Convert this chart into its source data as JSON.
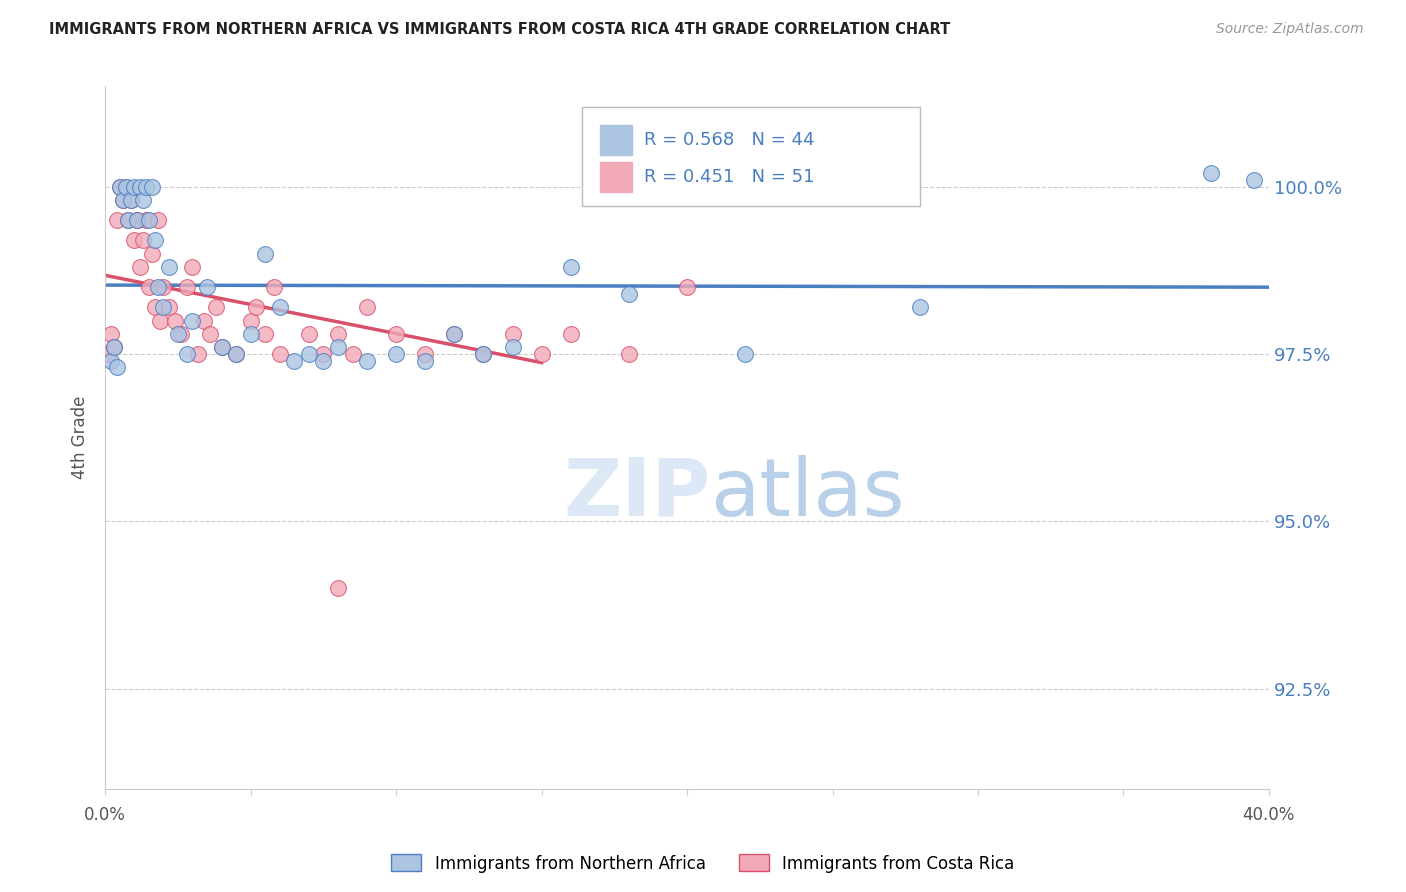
{
  "title": "IMMIGRANTS FROM NORTHERN AFRICA VS IMMIGRANTS FROM COSTA RICA 4TH GRADE CORRELATION CHART",
  "source": "Source: ZipAtlas.com",
  "ylabel": "4th Grade",
  "ytick_values": [
    100.0,
    97.5,
    95.0,
    92.5
  ],
  "xlim": [
    0.0,
    40.0
  ],
  "ylim": [
    91.0,
    101.5
  ],
  "blue_R": 0.568,
  "blue_N": 44,
  "pink_R": 0.451,
  "pink_N": 51,
  "legend_label_blue": "Immigrants from Northern Africa",
  "legend_label_pink": "Immigrants from Costa Rica",
  "blue_color": "#aac4e2",
  "pink_color": "#f2aab8",
  "trendline_blue": "#4a7fc1",
  "trendline_pink": "#d9506a",
  "title_color": "#222222",
  "axis_label_color": "#555555",
  "right_tick_color": "#4a7fc1",
  "watermark_zip_color": "#dce8f5",
  "watermark_atlas_color": "#b8d0e8",
  "blue_scatter_x": [
    0.2,
    0.3,
    0.4,
    0.5,
    0.6,
    0.7,
    0.8,
    0.9,
    1.0,
    1.1,
    1.2,
    1.3,
    1.4,
    1.5,
    1.6,
    1.7,
    1.8,
    2.0,
    2.2,
    2.5,
    2.8,
    3.0,
    3.5,
    4.0,
    4.5,
    5.0,
    5.5,
    6.0,
    6.5,
    7.0,
    7.5,
    8.0,
    9.0,
    10.0,
    11.0,
    12.0,
    13.0,
    14.0,
    16.0,
    18.0,
    22.0,
    28.0,
    38.0,
    39.5
  ],
  "blue_scatter_y": [
    97.4,
    97.6,
    97.3,
    100.0,
    99.8,
    100.0,
    99.5,
    99.8,
    100.0,
    99.5,
    100.0,
    99.8,
    100.0,
    99.5,
    100.0,
    99.2,
    98.5,
    98.2,
    98.8,
    97.8,
    97.5,
    98.0,
    98.5,
    97.6,
    97.5,
    97.8,
    99.0,
    98.2,
    97.4,
    97.5,
    97.4,
    97.6,
    97.4,
    97.5,
    97.4,
    97.8,
    97.5,
    97.6,
    98.8,
    98.4,
    97.5,
    98.2,
    100.2,
    100.1
  ],
  "pink_scatter_x": [
    0.1,
    0.2,
    0.3,
    0.4,
    0.5,
    0.6,
    0.7,
    0.8,
    0.9,
    1.0,
    1.1,
    1.2,
    1.3,
    1.4,
    1.5,
    1.6,
    1.7,
    1.8,
    1.9,
    2.0,
    2.2,
    2.4,
    2.6,
    2.8,
    3.0,
    3.2,
    3.4,
    3.6,
    3.8,
    4.0,
    4.5,
    5.0,
    5.2,
    5.5,
    6.0,
    7.0,
    7.5,
    8.0,
    8.5,
    9.0,
    10.0,
    11.0,
    12.0,
    13.0,
    14.0,
    15.0,
    16.0,
    18.0,
    20.0,
    8.0,
    5.8
  ],
  "pink_scatter_y": [
    97.5,
    97.8,
    97.6,
    99.5,
    100.0,
    99.8,
    100.0,
    99.5,
    99.8,
    99.2,
    99.5,
    98.8,
    99.2,
    99.5,
    98.5,
    99.0,
    98.2,
    99.5,
    98.0,
    98.5,
    98.2,
    98.0,
    97.8,
    98.5,
    98.8,
    97.5,
    98.0,
    97.8,
    98.2,
    97.6,
    97.5,
    98.0,
    98.2,
    97.8,
    97.5,
    97.8,
    97.5,
    97.8,
    97.5,
    98.2,
    97.8,
    97.5,
    97.8,
    97.5,
    97.8,
    97.5,
    97.8,
    97.5,
    98.5,
    94.0,
    98.5
  ],
  "pink_trendline_x_end": 15.0
}
